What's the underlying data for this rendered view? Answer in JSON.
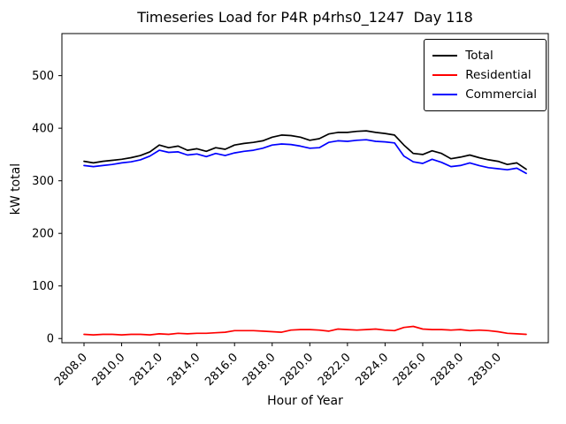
{
  "figure": {
    "title": "Timeseries Load for P4R p4rhs0_1247  Day 118",
    "xlabel": "Hour of Year",
    "ylabel": "kW total"
  },
  "legend": {
    "position": "upper right",
    "entries": [
      {
        "label": "Total",
        "color": "#000000"
      },
      {
        "label": "Residential",
        "color": "#ff0000"
      },
      {
        "label": "Commercial",
        "color": "#0000ff"
      }
    ]
  },
  "chart_data": {
    "type": "line",
    "title": "Timeseries Load for P4R p4rhs0_1247  Day 118",
    "xlabel": "Hour of Year",
    "ylabel": "kW total",
    "grid": false,
    "legend_position": "upper right",
    "xlim": [
      2806.825,
      2832.675
    ],
    "ylim": [
      -8,
      580
    ],
    "xticks": [
      {
        "value": 2808,
        "label": "2808.0"
      },
      {
        "value": 2810,
        "label": "2810.0"
      },
      {
        "value": 2812,
        "label": "2812.0"
      },
      {
        "value": 2814,
        "label": "2814.0"
      },
      {
        "value": 2816,
        "label": "2816.0"
      },
      {
        "value": 2818,
        "label": "2818.0"
      },
      {
        "value": 2820,
        "label": "2820.0"
      },
      {
        "value": 2822,
        "label": "2822.0"
      },
      {
        "value": 2824,
        "label": "2824.0"
      },
      {
        "value": 2826,
        "label": "2826.0"
      },
      {
        "value": 2828,
        "label": "2828.0"
      },
      {
        "value": 2830,
        "label": "2830.0"
      }
    ],
    "yticks": [
      {
        "value": 0,
        "label": "0"
      },
      {
        "value": 100,
        "label": "100"
      },
      {
        "value": 200,
        "label": "200"
      },
      {
        "value": 300,
        "label": "300"
      },
      {
        "value": 400,
        "label": "400"
      },
      {
        "value": 500,
        "label": "500"
      }
    ],
    "x": [
      2808.0,
      2808.5,
      2809.0,
      2809.5,
      2810.0,
      2810.5,
      2811.0,
      2811.5,
      2812.0,
      2812.5,
      2813.0,
      2813.5,
      2814.0,
      2814.5,
      2815.0,
      2815.5,
      2816.0,
      2816.5,
      2817.0,
      2817.5,
      2818.0,
      2818.5,
      2819.0,
      2819.5,
      2820.0,
      2820.5,
      2821.0,
      2821.5,
      2822.0,
      2822.5,
      2823.0,
      2823.5,
      2824.0,
      2824.5,
      2825.0,
      2825.5,
      2826.0,
      2826.5,
      2827.0,
      2827.5,
      2828.0,
      2828.5,
      2829.0,
      2829.5,
      2830.0,
      2830.5,
      2831.0,
      2831.5
    ],
    "series": [
      {
        "name": "Total",
        "color": "#000000",
        "values": [
          337,
          334,
          337,
          339,
          341,
          344,
          348,
          355,
          368,
          363,
          366,
          358,
          361,
          356,
          363,
          360,
          368,
          371,
          373,
          376,
          383,
          387,
          386,
          383,
          377,
          380,
          389,
          392,
          392,
          394,
          395,
          392,
          390,
          387,
          368,
          352,
          350,
          357,
          352,
          342,
          345,
          349,
          344,
          340,
          337,
          331,
          334,
          322
        ]
      },
      {
        "name": "Residential",
        "color": "#ff0000",
        "values": [
          8,
          7,
          8,
          8,
          7,
          8,
          8,
          7,
          9,
          8,
          10,
          9,
          10,
          10,
          11,
          12,
          15,
          15,
          15,
          14,
          13,
          12,
          16,
          17,
          17,
          16,
          14,
          18,
          17,
          16,
          17,
          18,
          16,
          15,
          21,
          23,
          18,
          17,
          17,
          16,
          17,
          15,
          16,
          15,
          13,
          10,
          9,
          8
        ]
      },
      {
        "name": "Commercial",
        "color": "#0000ff",
        "values": [
          329,
          327,
          329,
          331,
          334,
          336,
          340,
          347,
          358,
          354,
          355,
          349,
          351,
          346,
          352,
          348,
          353,
          356,
          358,
          362,
          368,
          370,
          369,
          366,
          362,
          363,
          373,
          376,
          375,
          377,
          378,
          375,
          374,
          372,
          347,
          336,
          333,
          341,
          335,
          327,
          329,
          334,
          329,
          325,
          323,
          321,
          324,
          314
        ]
      }
    ]
  }
}
